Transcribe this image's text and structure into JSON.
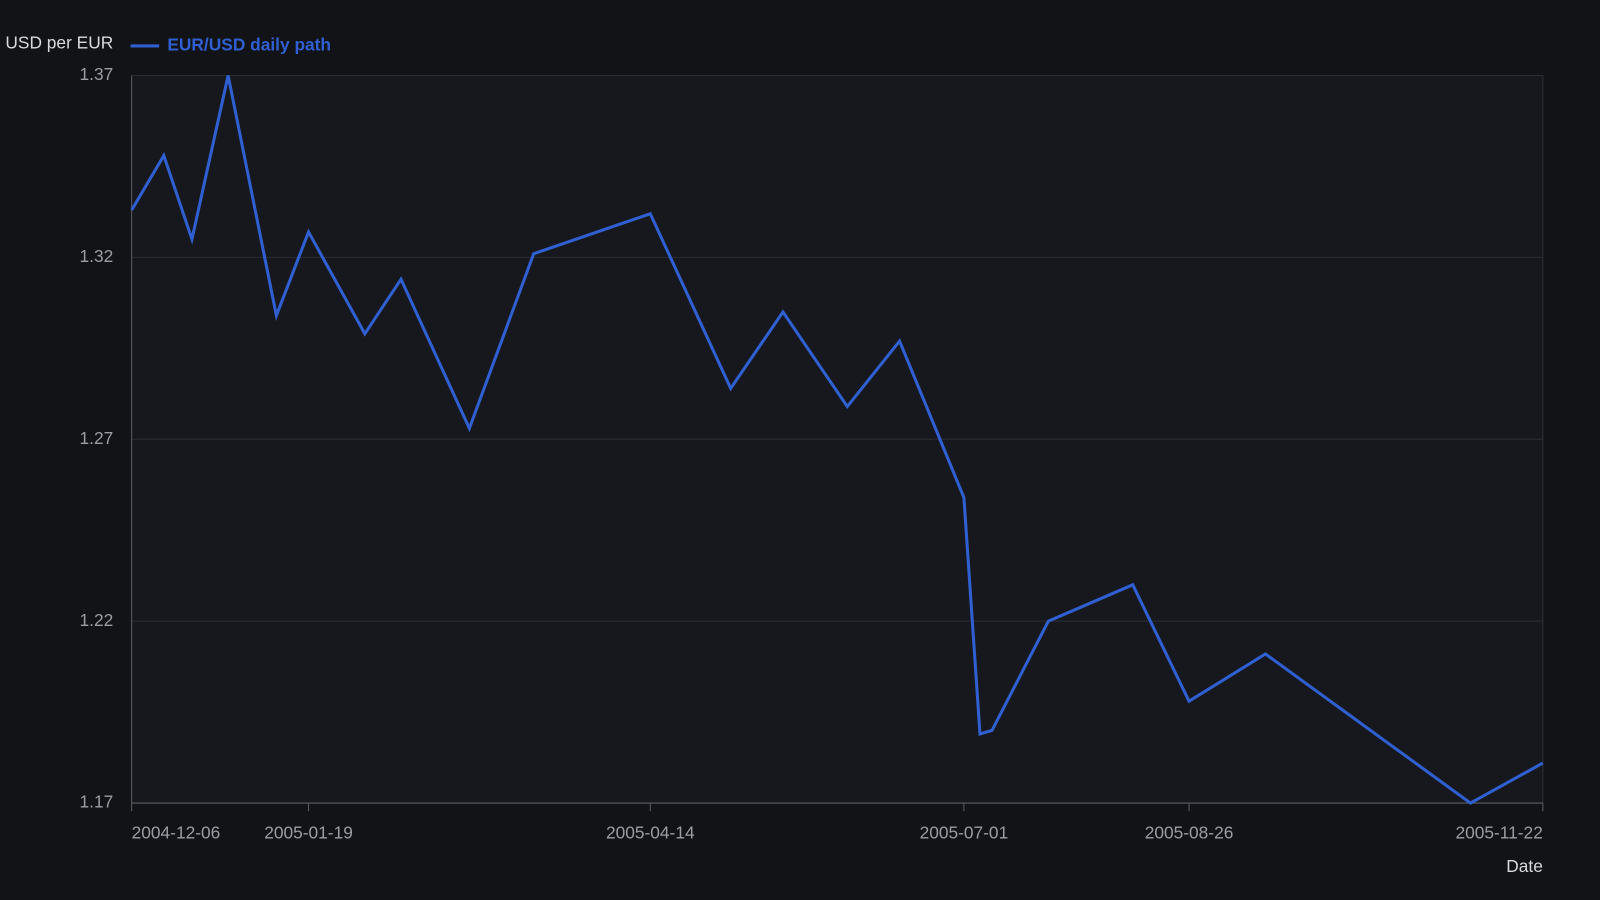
{
  "chart_data": {
    "type": "line",
    "y_label": "USD per EUR",
    "x_label": "Date",
    "x": [
      "2004-12-06",
      "2004-12-14",
      "2004-12-21",
      "2004-12-30",
      "2005-01-11",
      "2005-01-19",
      "2005-02-02",
      "2005-02-11",
      "2005-02-28",
      "2005-03-16",
      "2005-04-14",
      "2005-05-04",
      "2005-05-17",
      "2005-06-02",
      "2005-06-15",
      "2005-07-01",
      "2005-07-05",
      "2005-07-08",
      "2005-07-22",
      "2005-08-12",
      "2005-08-26",
      "2005-09-14",
      "2005-11-04",
      "2005-11-22"
    ],
    "series": [
      {
        "name": "EUR/USD daily path",
        "color": "#2f5fd0",
        "values": [
          1.333,
          1.348,
          1.325,
          1.37,
          1.304,
          1.327,
          1.299,
          1.314,
          1.273,
          1.321,
          1.332,
          1.284,
          1.305,
          1.279,
          1.297,
          1.254,
          1.189,
          1.19,
          1.22,
          1.23,
          1.198,
          1.211,
          1.17,
          1.181
        ]
      }
    ],
    "xlim": [
      "2004-12-06",
      "2005-11-22"
    ],
    "xticks": [
      "2004-12-06",
      "2005-01-19",
      "2005-04-14",
      "2005-07-01",
      "2005-08-26",
      "2005-11-22"
    ],
    "ylim": [
      1.17,
      1.37
    ],
    "yticks": [
      1.17,
      1.22,
      1.27,
      1.32,
      1.37
    ],
    "grid": true
  }
}
